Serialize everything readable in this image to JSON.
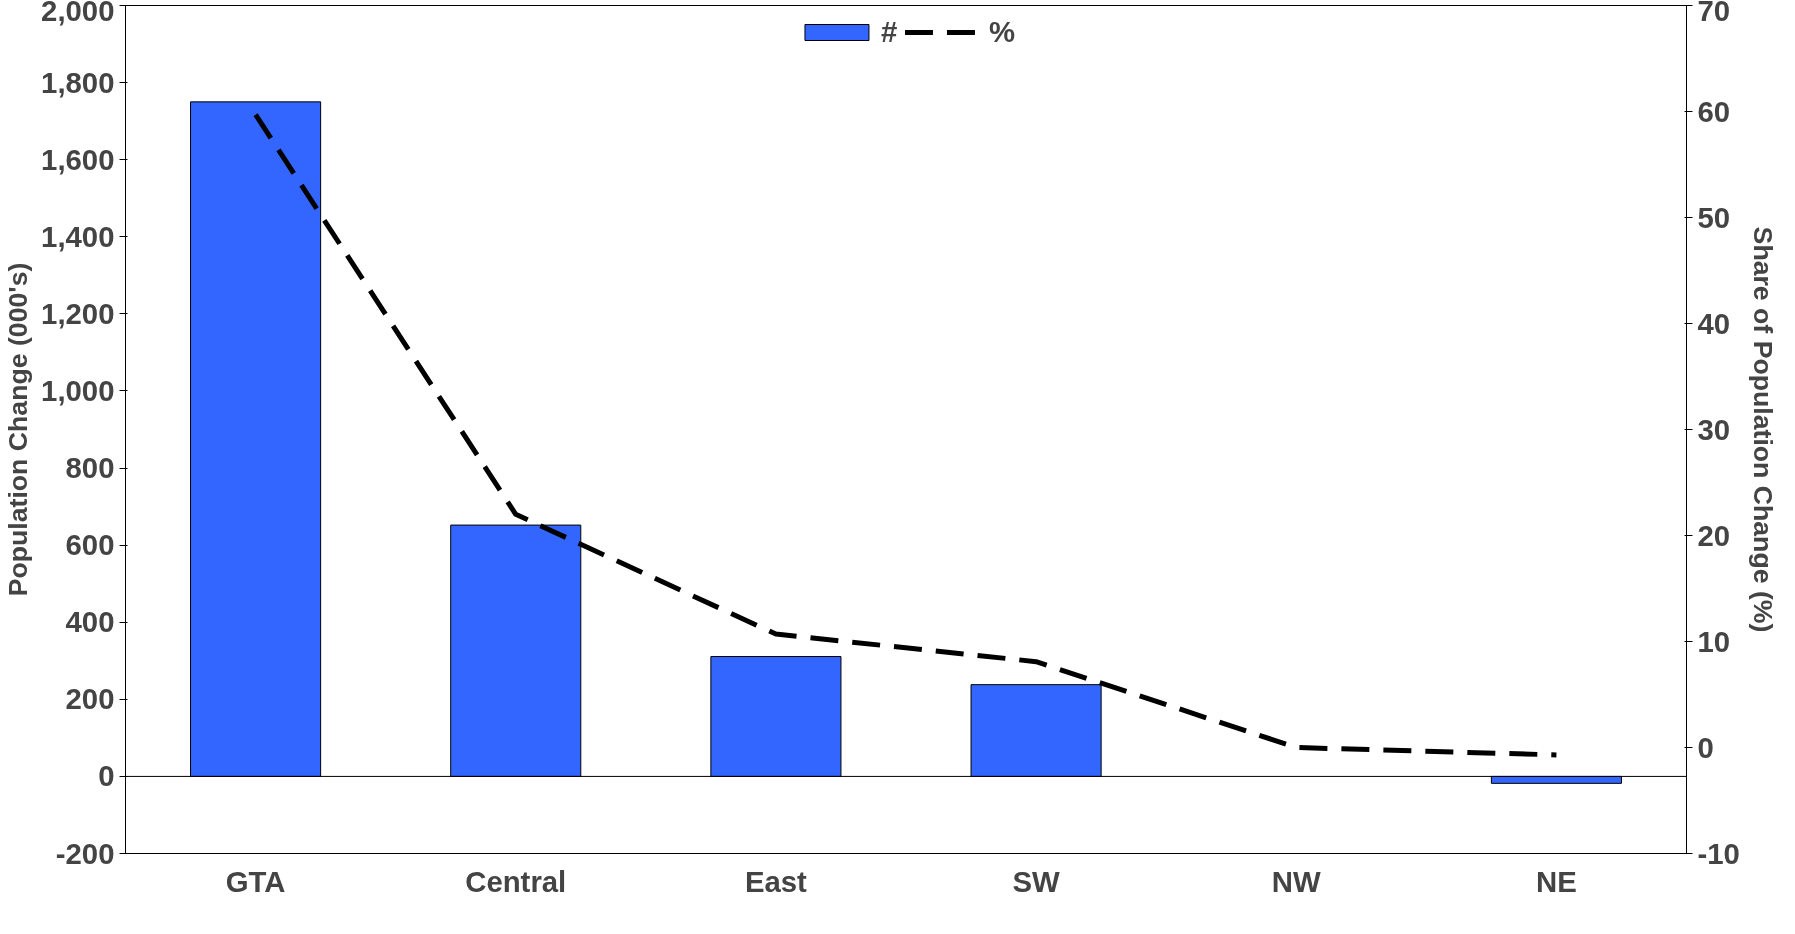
{
  "chart_data": {
    "type": "bar",
    "ylabel": "Population Change (000's)",
    "y2label": "Share of Population Change (%)",
    "categories": [
      "GTA",
      "Central",
      "East",
      "SW",
      "NW",
      "NE"
    ],
    "series": [
      {
        "name": "#",
        "color": "#3366ff",
        "values": [
          1750,
          652,
          311,
          238,
          null,
          -18
        ]
      },
      {
        "name": "%",
        "type": "line",
        "axis": "y2",
        "color": "#000000",
        "line_style": "dashed",
        "values": [
          59.7,
          22.0,
          10.7,
          8.1,
          0,
          -0.7
        ]
      }
    ],
    "ylim": [
      -200,
      2000
    ],
    "yticks": [
      {
        "value": -200,
        "label": "-200"
      },
      {
        "value": 0,
        "label": "0"
      },
      {
        "value": 200,
        "label": "200"
      },
      {
        "value": 400,
        "label": "400"
      },
      {
        "value": 600,
        "label": "600"
      },
      {
        "value": 800,
        "label": "800"
      },
      {
        "value": 1000,
        "label": "1,000"
      },
      {
        "value": 1200,
        "label": "1,200"
      },
      {
        "value": 1400,
        "label": "1,400"
      },
      {
        "value": 1600,
        "label": "1,600"
      },
      {
        "value": 1800,
        "label": "1,800"
      },
      {
        "value": 2000,
        "label": "2,000"
      }
    ],
    "y2lim": [
      -10,
      70
    ],
    "y2ticks": [
      -10,
      0,
      10,
      20,
      30,
      40,
      50,
      60,
      70
    ],
    "ref_lines": [
      {
        "axis": "y",
        "value": 0
      }
    ],
    "grid": false,
    "legend": "top"
  }
}
